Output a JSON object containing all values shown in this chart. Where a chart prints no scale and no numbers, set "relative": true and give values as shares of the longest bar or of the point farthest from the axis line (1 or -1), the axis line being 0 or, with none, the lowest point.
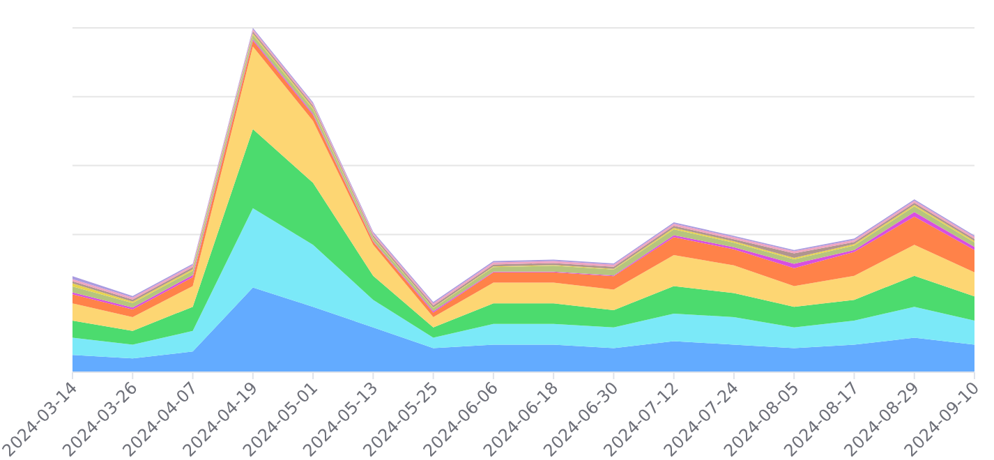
{
  "chart_data": {
    "type": "area",
    "stacked": true,
    "relative": true,
    "grid": "y",
    "x": [
      "2024-03-14",
      "2024-03-26",
      "2024-04-07",
      "2024-04-19",
      "2024-05-01",
      "2024-05-13",
      "2024-05-25",
      "2024-06-06",
      "2024-06-18",
      "2024-06-30",
      "2024-07-12",
      "2024-07-24",
      "2024-08-05",
      "2024-08-17",
      "2024-08-29",
      "2024-09-10"
    ],
    "xlim": [
      "2024-03-14",
      "2024-09-10"
    ],
    "xticks": [
      "2024-03-14",
      "2024-03-26",
      "2024-04-07",
      "2024-04-19",
      "2024-05-01",
      "2024-05-13",
      "2024-05-25",
      "2024-06-06",
      "2024-06-18",
      "2024-06-30",
      "2024-07-12",
      "2024-07-24",
      "2024-08-05",
      "2024-08-17",
      "2024-08-29",
      "2024-09-10"
    ],
    "series": [
      {
        "color": "#63abff",
        "values": [
          0.05,
          0.04,
          0.06,
          0.246,
          0.19,
          0.13,
          0.07,
          0.08,
          0.08,
          0.07,
          0.09,
          0.08,
          0.07,
          0.08,
          0.1,
          0.08
        ]
      },
      {
        "color": "#7be9f8",
        "values": [
          0.05,
          0.04,
          0.06,
          0.23,
          0.18,
          0.08,
          0.03,
          0.06,
          0.06,
          0.06,
          0.08,
          0.08,
          0.06,
          0.07,
          0.09,
          0.07
        ]
      },
      {
        "color": "#4cdb6e",
        "values": [
          0.05,
          0.04,
          0.07,
          0.23,
          0.18,
          0.07,
          0.03,
          0.06,
          0.06,
          0.05,
          0.08,
          0.07,
          0.06,
          0.06,
          0.09,
          0.07
        ]
      },
      {
        "color": "#fdd673",
        "values": [
          0.05,
          0.04,
          0.06,
          0.24,
          0.18,
          0.09,
          0.03,
          0.06,
          0.06,
          0.06,
          0.09,
          0.08,
          0.06,
          0.07,
          0.09,
          0.07
        ]
      },
      {
        "color": "#ff8249",
        "values": [
          0.026,
          0.022,
          0.026,
          0.017,
          0.017,
          0.009,
          0.013,
          0.03,
          0.03,
          0.039,
          0.052,
          0.047,
          0.052,
          0.069,
          0.082,
          0.065
        ]
      },
      {
        "color": "#d84fe0",
        "values": [
          0.006,
          0.006,
          0.006,
          0.004,
          0.004,
          0.002,
          0.004,
          0.002,
          0.002,
          0.002,
          0.006,
          0.006,
          0.013,
          0.006,
          0.013,
          0.009
        ]
      },
      {
        "color": "#b6c57e",
        "values": [
          0.017,
          0.013,
          0.013,
          0.013,
          0.013,
          0.009,
          0.009,
          0.013,
          0.017,
          0.017,
          0.017,
          0.013,
          0.013,
          0.013,
          0.017,
          0.013
        ]
      },
      {
        "color": "#e8d44d",
        "values": [
          0.009,
          0.004,
          0.004,
          0.004,
          0.004,
          0.002,
          0.002,
          0.002,
          0.002,
          0.002,
          0.004,
          0.004,
          0.004,
          0.004,
          0.004,
          0.004
        ]
      },
      {
        "color": "#b0958f",
        "values": [
          0.006,
          0.006,
          0.006,
          0.006,
          0.006,
          0.006,
          0.006,
          0.006,
          0.006,
          0.006,
          0.006,
          0.006,
          0.013,
          0.006,
          0.006,
          0.006
        ]
      },
      {
        "color": "#f0a5c0",
        "values": [
          0.006,
          0.006,
          0.006,
          0.006,
          0.006,
          0.006,
          0.006,
          0.006,
          0.006,
          0.006,
          0.006,
          0.006,
          0.006,
          0.006,
          0.006,
          0.006
        ]
      },
      {
        "color": "#a99be0",
        "values": [
          0.009,
          0.004,
          0.004,
          0.004,
          0.004,
          0.004,
          0.004,
          0.004,
          0.004,
          0.004,
          0.004,
          0.004,
          0.004,
          0.004,
          0.004,
          0.004
        ]
      }
    ]
  }
}
